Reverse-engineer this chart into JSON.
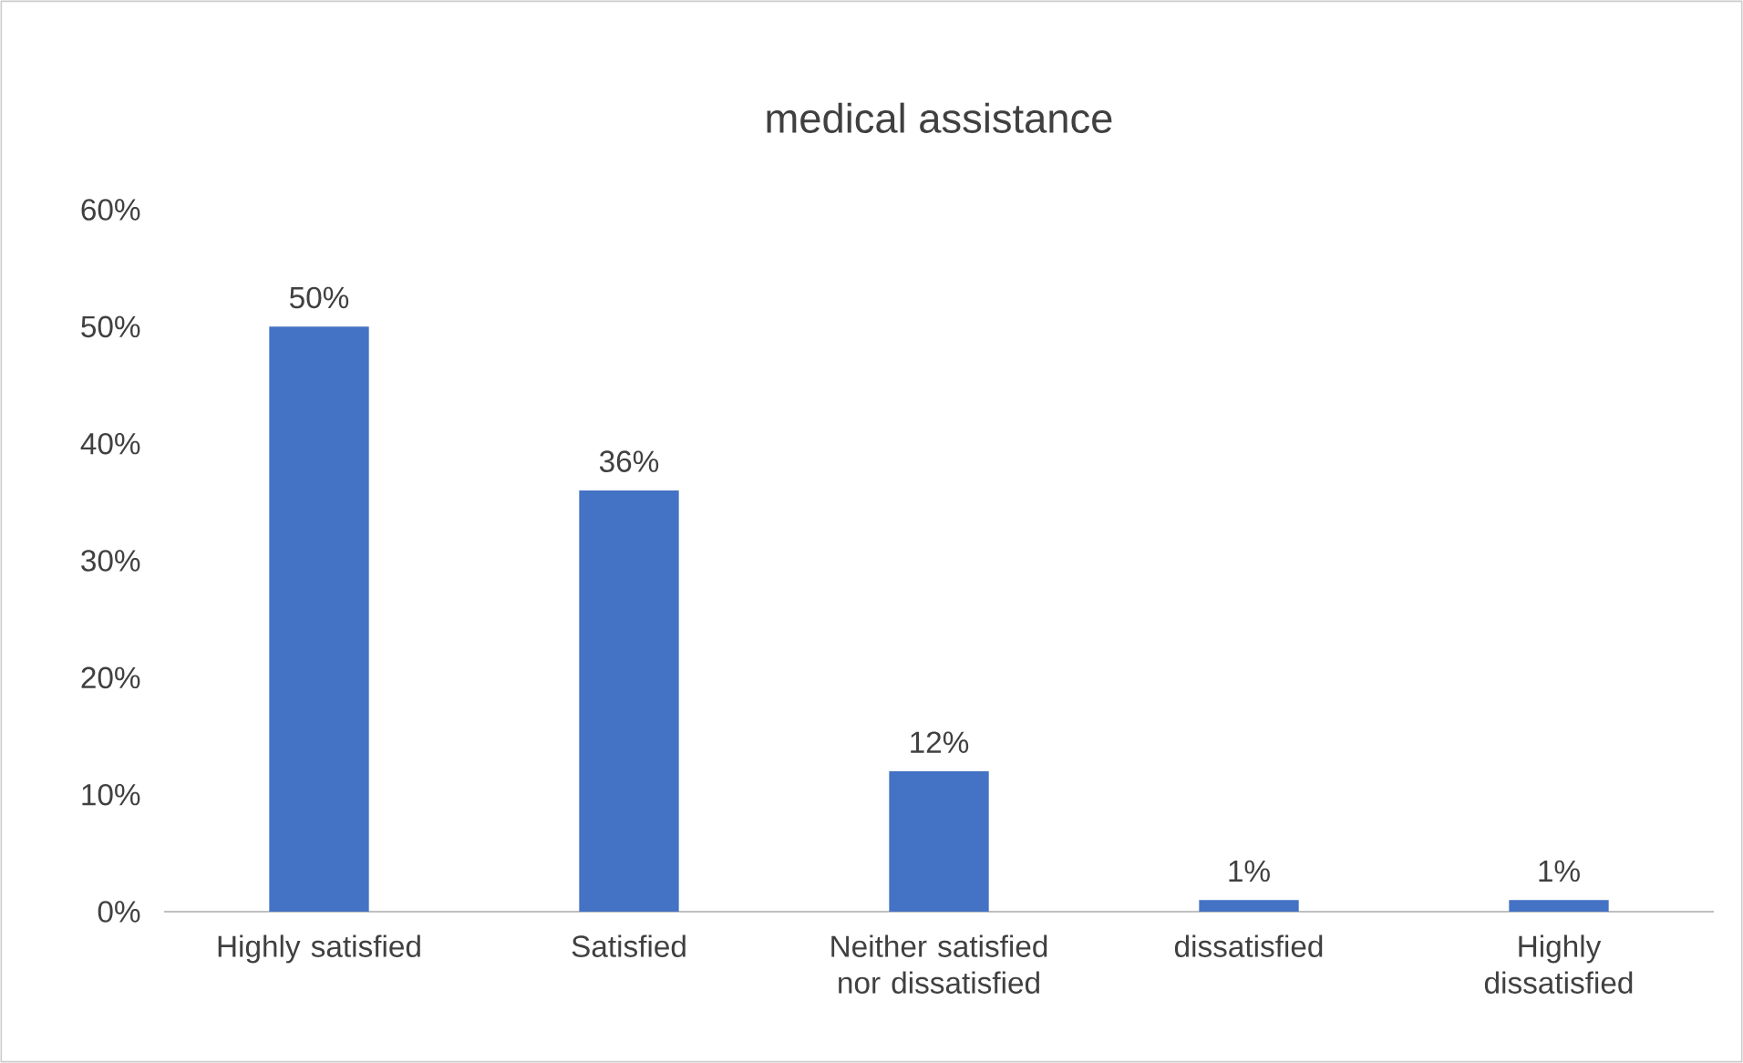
{
  "chart_data": {
    "type": "bar",
    "title": "medical assistance",
    "categories": [
      "Highly satisfied",
      "Satisfied",
      "Neither satisfied nor dissatisfied",
      "dissatisfied",
      "Highly dissatisfied"
    ],
    "values": [
      50,
      36,
      12,
      1,
      1
    ],
    "value_labels": [
      "50%",
      "36%",
      "12%",
      "1%",
      "1%"
    ],
    "color": "#4472c4",
    "ylim": [
      0,
      60
    ],
    "yticks": [
      {
        "value": 0,
        "label": "0%"
      },
      {
        "value": 10,
        "label": "10%"
      },
      {
        "value": 20,
        "label": "20%"
      },
      {
        "value": 30,
        "label": "30%"
      },
      {
        "value": 40,
        "label": "40%"
      },
      {
        "value": 50,
        "label": "50%"
      },
      {
        "value": 60,
        "label": "60%"
      }
    ]
  }
}
